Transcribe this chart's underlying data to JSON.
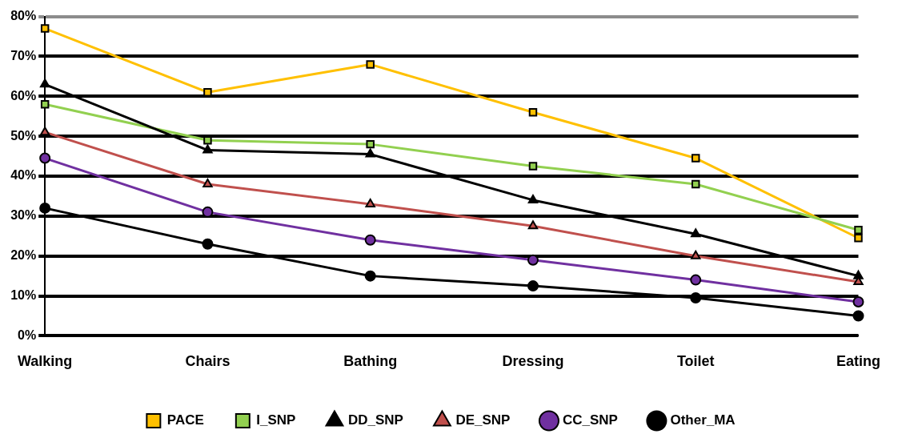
{
  "chart_data": {
    "type": "line",
    "categories": [
      "Walking",
      "Chairs",
      "Bathing",
      "Dressing",
      "Toilet",
      "Eating"
    ],
    "series": [
      {
        "name": "PACE",
        "color": "#ffc000",
        "marker": "square",
        "values": [
          77,
          61,
          68,
          56,
          44.5,
          24.5
        ]
      },
      {
        "name": "I_SNP",
        "color": "#92d050",
        "marker": "square",
        "values": [
          58,
          49,
          48,
          42.5,
          38,
          26.5
        ]
      },
      {
        "name": "DD_SNP",
        "color": "#000000",
        "marker": "triangle",
        "values": [
          63,
          46.5,
          45.5,
          34,
          25.5,
          15
        ]
      },
      {
        "name": "DE_SNP",
        "color": "#c0504d",
        "marker": "triangle",
        "values": [
          51,
          38,
          33,
          27.5,
          20,
          13.5
        ]
      },
      {
        "name": "CC_SNP",
        "color": "#7030a0",
        "marker": "circle",
        "values": [
          44.5,
          31,
          24,
          19,
          14,
          8.5
        ]
      },
      {
        "name": "Other_MA",
        "color": "#000000",
        "marker": "circle",
        "values": [
          32,
          23,
          15,
          12.5,
          9.5,
          5
        ]
      }
    ],
    "ylim": [
      0,
      80
    ],
    "yticks": [
      {
        "value": 0,
        "label": "0%"
      },
      {
        "value": 10,
        "label": "10%"
      },
      {
        "value": 20,
        "label": "20%"
      },
      {
        "value": 30,
        "label": "30%"
      },
      {
        "value": 40,
        "label": "40%"
      },
      {
        "value": 50,
        "label": "50%"
      },
      {
        "value": 60,
        "label": "60%"
      },
      {
        "value": 70,
        "label": "70%"
      },
      {
        "value": 80,
        "label": "80%"
      }
    ],
    "grid": "y",
    "legend": "bottom"
  }
}
